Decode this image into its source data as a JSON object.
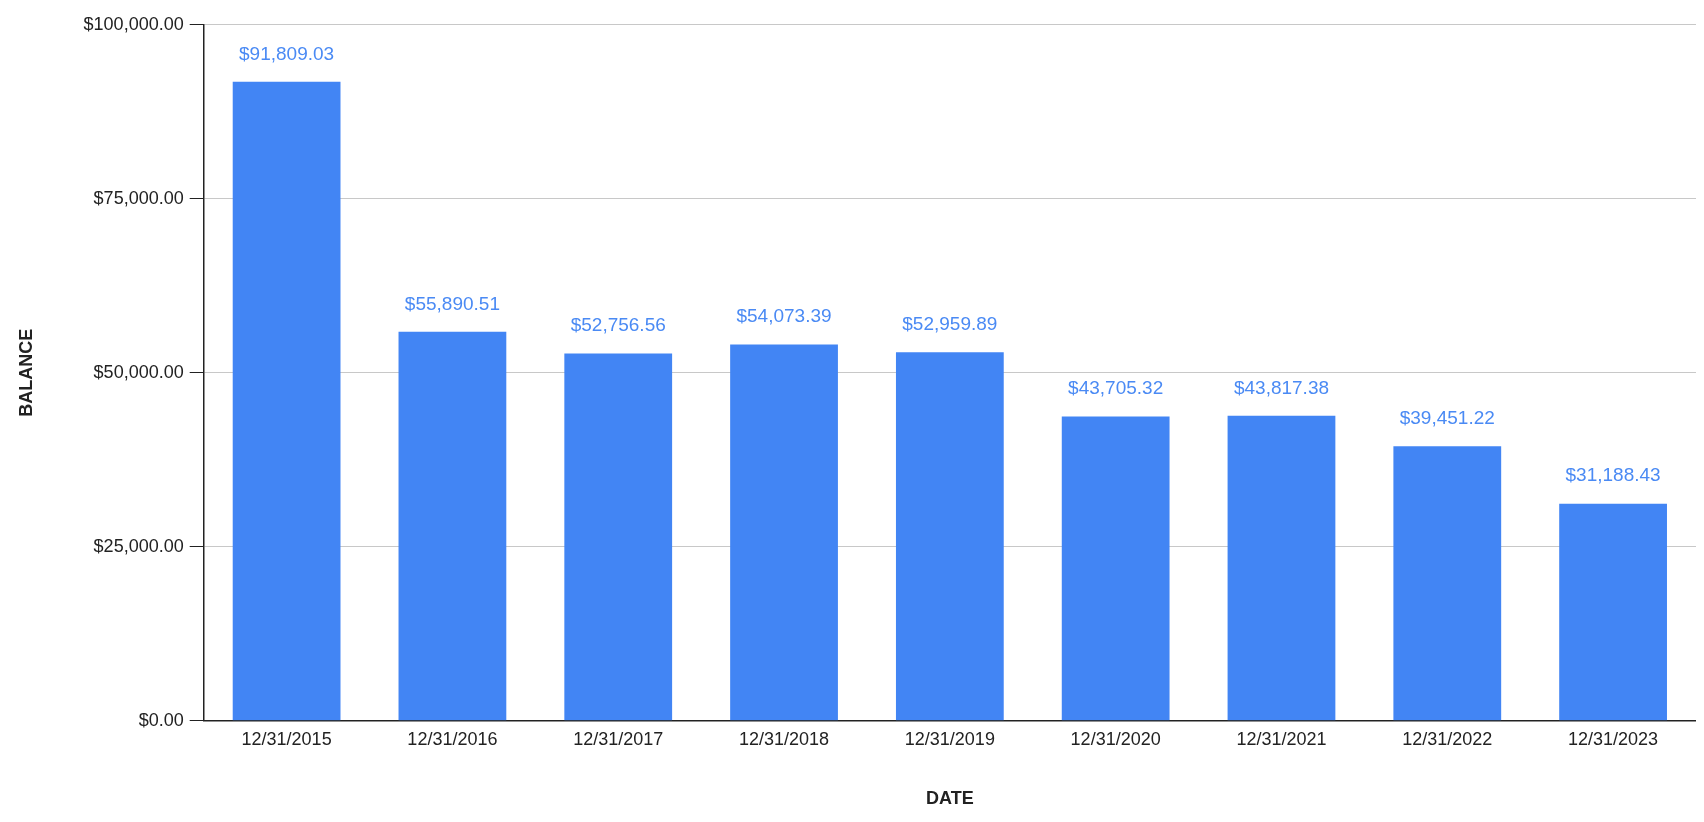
{
  "chart_data": {
    "type": "bar",
    "xlabel": "DATE",
    "ylabel": "BALANCE",
    "categories": [
      "12/31/2015",
      "12/31/2016",
      "12/31/2017",
      "12/31/2018",
      "12/31/2019",
      "12/31/2020",
      "12/31/2021",
      "12/31/2022",
      "12/31/2023"
    ],
    "values": [
      91809.03,
      55890.51,
      52756.56,
      54073.39,
      52959.89,
      43705.32,
      43817.38,
      39451.22,
      31188.43
    ],
    "value_labels": [
      "$91,809.03",
      "$55,890.51",
      "$52,756.56",
      "$54,073.39",
      "$52,959.89",
      "$43,705.32",
      "$43,817.38",
      "$39,451.22",
      "$31,188.43"
    ],
    "color": "#4285f4",
    "ylim": [
      0,
      100000
    ],
    "yticks": [
      {
        "value": 0,
        "label": "$0.00"
      },
      {
        "value": 25000,
        "label": "$25,000.00"
      },
      {
        "value": 50000,
        "label": "$50,000.00"
      },
      {
        "value": 75000,
        "label": "$75,000.00"
      },
      {
        "value": 100000,
        "label": "$100,000.00"
      }
    ],
    "grid": "y",
    "legend": false
  }
}
